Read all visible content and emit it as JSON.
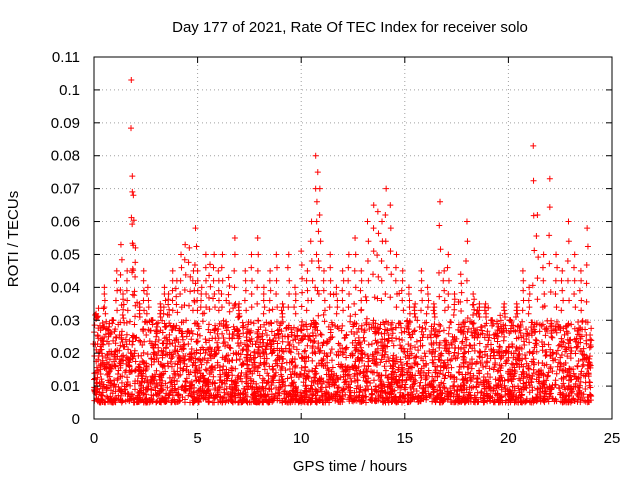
{
  "chart_data": {
    "type": "scatter",
    "title": "Day 177 of 2021, Rate Of TEC Index for receiver solo",
    "xlabel": "GPS time / hours",
    "ylabel": "ROTI / TECUs",
    "xlim": [
      0,
      25
    ],
    "ylim": [
      0,
      0.11
    ],
    "grid": true,
    "marker": "+",
    "x_ticks": [
      0,
      5,
      10,
      15,
      20,
      25
    ],
    "x_tick_labels": [
      "0",
      "5",
      "10",
      "15",
      "20",
      "25"
    ],
    "y_ticks": [
      0,
      0.01,
      0.02,
      0.03,
      0.04,
      0.05,
      0.06,
      0.07,
      0.08,
      0.09,
      0.1,
      0.11
    ],
    "y_tick_labels": [
      "0",
      "0.01",
      "0.02",
      "0.03",
      "0.04",
      "0.05",
      "0.06",
      "0.07",
      "0.08",
      "0.09",
      "0.1",
      "0.11"
    ],
    "series": [
      {
        "name": "ROTI",
        "color": "#ff0000",
        "x": [
          0.0,
          0.1,
          0.2,
          0.3,
          0.5,
          0.7,
          0.9,
          1.1,
          1.3,
          1.4,
          1.6,
          1.8,
          1.85,
          1.9,
          2.0,
          2.2,
          2.4,
          2.6,
          2.8,
          3.0,
          3.2,
          3.4,
          3.6,
          3.8,
          4.0,
          4.2,
          4.4,
          4.6,
          4.8,
          4.9,
          5.0,
          5.2,
          5.4,
          5.6,
          5.8,
          6.0,
          6.2,
          6.5,
          6.8,
          7.0,
          7.3,
          7.6,
          7.9,
          8.2,
          8.5,
          8.8,
          9.1,
          9.4,
          9.7,
          10.0,
          10.3,
          10.5,
          10.7,
          10.8,
          10.9,
          11.1,
          11.4,
          11.7,
          12.0,
          12.3,
          12.6,
          12.9,
          13.2,
          13.5,
          13.7,
          13.9,
          14.1,
          14.3,
          14.6,
          14.9,
          15.2,
          15.5,
          15.8,
          16.1,
          16.4,
          16.7,
          16.9,
          17.1,
          17.4,
          17.7,
          18.0,
          18.3,
          18.6,
          18.9,
          19.2,
          19.5,
          19.8,
          20.1,
          20.4,
          20.7,
          21.0,
          21.2,
          21.4,
          21.7,
          22.0,
          22.3,
          22.6,
          22.9,
          23.2,
          23.5,
          23.8
        ],
        "y": [
          0.012,
          0.032,
          0.018,
          0.015,
          0.04,
          0.025,
          0.03,
          0.045,
          0.053,
          0.038,
          0.045,
          0.103,
          0.069,
          0.068,
          0.052,
          0.035,
          0.045,
          0.04,
          0.03,
          0.025,
          0.035,
          0.04,
          0.038,
          0.045,
          0.042,
          0.05,
          0.053,
          0.052,
          0.045,
          0.058,
          0.045,
          0.04,
          0.05,
          0.047,
          0.05,
          0.045,
          0.05,
          0.043,
          0.055,
          0.035,
          0.045,
          0.05,
          0.055,
          0.04,
          0.045,
          0.05,
          0.035,
          0.05,
          0.04,
          0.051,
          0.045,
          0.06,
          0.08,
          0.075,
          0.07,
          0.045,
          0.05,
          0.04,
          0.045,
          0.05,
          0.055,
          0.045,
          0.06,
          0.065,
          0.063,
          0.06,
          0.07,
          0.065,
          0.05,
          0.045,
          0.04,
          0.035,
          0.045,
          0.04,
          0.035,
          0.066,
          0.045,
          0.05,
          0.038,
          0.044,
          0.06,
          0.038,
          0.035,
          0.035,
          0.03,
          0.025,
          0.035,
          0.03,
          0.035,
          0.045,
          0.04,
          0.083,
          0.062,
          0.05,
          0.073,
          0.05,
          0.045,
          0.06,
          0.05,
          0.045,
          0.058
        ]
      }
    ],
    "bulk_band": {
      "x_start": 0,
      "x_end": 24,
      "y_low": 0.005,
      "y_high": 0.03
    }
  }
}
